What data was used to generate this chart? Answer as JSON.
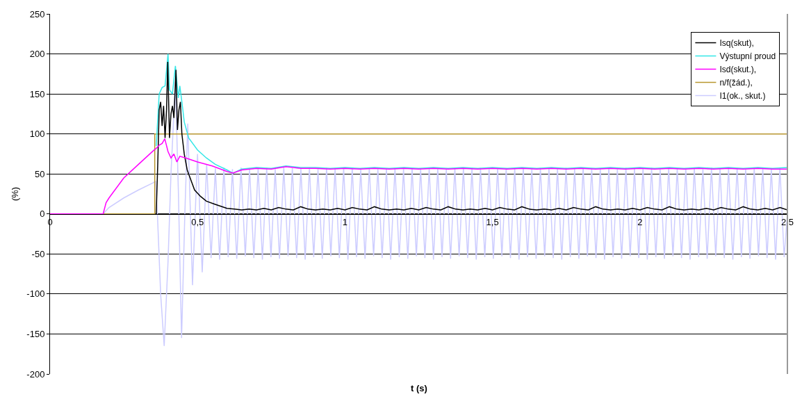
{
  "chart_data": {
    "type": "line",
    "xlabel": "t (s)",
    "ylabel": "(%)",
    "xlim": [
      0,
      2.5
    ],
    "ylim": [
      -200,
      250
    ],
    "xticks": [
      0,
      {
        "value": 0.5,
        "label": "0,5"
      },
      1,
      {
        "value": 1.5,
        "label": "1,5"
      },
      2,
      {
        "value": 2.5,
        "label": "2,5"
      }
    ],
    "yticks": [
      -200,
      -150,
      -100,
      -50,
      0,
      50,
      100,
      150,
      200,
      250
    ],
    "grid": "y",
    "legend": "top right",
    "series": [
      {
        "name": "Isq(skut),",
        "color": "#000000",
        "x": [
          0.36,
          0.365,
          0.37,
          0.375,
          0.38,
          0.385,
          0.39,
          0.395,
          0.399,
          0.405,
          0.41,
          0.415,
          0.42,
          0.427,
          0.432,
          0.437,
          0.442,
          0.447,
          0.455,
          0.465,
          0.475,
          0.49,
          0.51,
          0.53,
          0.56,
          0.6,
          0.625,
          0.65,
          0.675,
          0.7,
          0.725,
          0.75,
          0.775,
          0.8,
          0.825,
          0.85,
          0.875,
          0.9,
          0.925,
          0.95,
          0.975,
          1,
          1.025,
          1.05,
          1.075,
          1.1,
          1.125,
          1.15,
          1.175,
          1.2,
          1.225,
          1.25,
          1.275,
          1.3,
          1.325,
          1.35,
          1.375,
          1.4,
          1.425,
          1.45,
          1.475,
          1.5,
          1.525,
          1.55,
          1.575,
          1.6,
          1.625,
          1.65,
          1.675,
          1.7,
          1.725,
          1.75,
          1.775,
          1.8,
          1.825,
          1.85,
          1.875,
          1.9,
          1.925,
          1.95,
          1.975,
          2,
          2.025,
          2.05,
          2.075,
          2.1,
          2.125,
          2.15,
          2.175,
          2.2,
          2.225,
          2.25,
          2.275,
          2.3,
          2.325,
          2.35,
          2.375,
          2.4,
          2.425,
          2.45,
          2.475,
          2.5
        ],
        "values": [
          0,
          60,
          130,
          140,
          110,
          135,
          95,
          130,
          190,
          95,
          125,
          135,
          120,
          180,
          105,
          130,
          140,
          100,
          75,
          55,
          45,
          30,
          22,
          16,
          12,
          7,
          6,
          5,
          6,
          5,
          7,
          5,
          8,
          6,
          5,
          9,
          6,
          5,
          6,
          5,
          7,
          5,
          8,
          6,
          5,
          9,
          6,
          5,
          6,
          5,
          7,
          5,
          8,
          6,
          5,
          9,
          6,
          5,
          6,
          5,
          7,
          5,
          8,
          6,
          5,
          9,
          6,
          5,
          6,
          5,
          7,
          5,
          8,
          6,
          5,
          9,
          6,
          5,
          6,
          5,
          7,
          5,
          8,
          6,
          5,
          9,
          6,
          5,
          6,
          5,
          7,
          5,
          8,
          6,
          5,
          9,
          6,
          5,
          7,
          5,
          8,
          5
        ]
      },
      {
        "name": "Výstupní proud",
        "color": "#33e6e6",
        "x": [
          0.36,
          0.37,
          0.38,
          0.39,
          0.4,
          0.405,
          0.415,
          0.425,
          0.435,
          0.44,
          0.447,
          0.455,
          0.47,
          0.5,
          0.53,
          0.56,
          0.6,
          0.62,
          0.65,
          0.7,
          0.75,
          0.8,
          0.85,
          0.9,
          0.95,
          1,
          1.05,
          1.1,
          1.15,
          1.2,
          1.25,
          1.3,
          1.35,
          1.4,
          1.45,
          1.5,
          1.55,
          1.6,
          1.65,
          1.7,
          1.75,
          1.8,
          1.85,
          1.9,
          1.95,
          2,
          2.05,
          2.1,
          2.15,
          2.2,
          2.25,
          2.3,
          2.35,
          2.4,
          2.45,
          2.5
        ],
        "values": [
          85,
          150,
          158,
          160,
          200,
          155,
          150,
          185,
          145,
          160,
          140,
          115,
          95,
          80,
          70,
          62,
          55,
          51,
          56,
          58,
          57,
          60,
          58,
          58,
          57,
          58,
          57,
          58,
          57,
          58,
          57,
          58,
          57,
          58,
          57,
          58,
          57,
          58,
          57,
          58,
          57,
          58,
          57,
          58,
          57,
          58,
          57,
          58,
          57,
          58,
          57,
          58,
          57,
          58,
          57,
          58
        ]
      },
      {
        "name": "Isd(skut.),",
        "color": "#ff00ff",
        "x": [
          0,
          0.18,
          0.19,
          0.2,
          0.25,
          0.3,
          0.35,
          0.36,
          0.37,
          0.38,
          0.389,
          0.4,
          0.41,
          0.42,
          0.43,
          0.44,
          0.46,
          0.5,
          0.55,
          0.6,
          0.62,
          0.65,
          0.7,
          0.75,
          0.8,
          0.85,
          0.9,
          0.95,
          1,
          1.05,
          1.1,
          1.15,
          1.2,
          1.25,
          1.3,
          1.35,
          1.4,
          1.45,
          1.5,
          1.55,
          1.6,
          1.65,
          1.7,
          1.75,
          1.8,
          1.85,
          1.9,
          1.95,
          2,
          2.05,
          2.1,
          2.15,
          2.2,
          2.25,
          2.3,
          2.35,
          2.4,
          2.45,
          2.5
        ],
        "values": [
          0,
          0,
          14,
          20,
          45,
          62,
          79,
          82,
          86,
          88,
          94,
          78,
          70,
          75,
          65,
          72,
          70,
          65,
          60,
          53,
          51,
          55,
          57,
          56,
          59,
          57,
          57,
          56,
          57,
          56,
          57,
          56,
          57,
          56,
          57,
          56,
          57,
          56,
          57,
          56,
          57,
          56,
          57,
          56,
          57,
          56,
          57,
          56,
          57,
          56,
          57,
          56,
          57,
          56,
          57,
          56,
          57,
          56,
          56
        ]
      },
      {
        "name": "n/f(žád.),",
        "color": "#b8962e",
        "type": "step",
        "x": [
          0,
          0.355,
          2.5
        ],
        "values": [
          0,
          100,
          100
        ]
      },
      {
        "name": "I1(ok., skut.)",
        "color": "#ccccff",
        "x": [
          0.18,
          0.2,
          0.25,
          0.3,
          0.35,
          0.358,
          0.364,
          0.375,
          0.387,
          0.4,
          0.41,
          0.425,
          0.435,
          0.446,
          0.457,
          0.467,
          0.483,
          0.5,
          0.516,
          0.531,
          0.546,
          0.5605,
          0.575,
          0.5895,
          0.604,
          0.6185,
          0.633,
          0.6475,
          0.662,
          0.6765,
          0.691,
          0.7055,
          0.72,
          0.7345,
          0.749,
          0.7635,
          0.778,
          0.7925,
          0.807,
          0.8215,
          0.836,
          0.8505,
          0.865,
          0.8795,
          0.894,
          0.9085,
          0.923,
          0.9375,
          0.952,
          0.9665,
          0.981,
          0.9955,
          1.01,
          1.0245,
          1.039,
          1.0535,
          1.068,
          1.0825,
          1.097,
          1.1115,
          1.126,
          1.1405,
          1.155,
          1.1695,
          1.184,
          1.1985,
          1.213,
          1.2275,
          1.242,
          1.2565,
          1.271,
          1.2855,
          1.3,
          1.3145,
          1.329,
          1.3435,
          1.358,
          1.3725,
          1.387,
          1.4015,
          1.416,
          1.4305,
          1.445,
          1.4595,
          1.474,
          1.4885,
          1.503,
          1.5175,
          1.532,
          1.5465,
          1.561,
          1.5755,
          1.59,
          1.6045,
          1.619,
          1.6335,
          1.648,
          1.6625,
          1.677,
          1.6915,
          1.706,
          1.7205,
          1.735,
          1.7495,
          1.764,
          1.7785,
          1.793,
          1.8075,
          1.822,
          1.8365,
          1.851,
          1.8655,
          1.88,
          1.8945,
          1.909,
          1.9235,
          1.938,
          1.9525,
          1.967,
          1.9815,
          1.996,
          2.0105,
          2.025,
          2.0395,
          2.054,
          2.0685,
          2.083,
          2.0975,
          2.112,
          2.1265,
          2.141,
          2.1555,
          2.17,
          2.1845,
          2.199,
          2.2135,
          2.228,
          2.2425,
          2.257,
          2.2715,
          2.286,
          2.3005,
          2.315,
          2.3295,
          2.344,
          2.3585,
          2.373,
          2.3875,
          2.402,
          2.4165,
          2.431,
          2.4455,
          2.46,
          2.4745,
          2.489,
          2.5
        ],
        "values": [
          0,
          8,
          20,
          30,
          39,
          41,
          0,
          -100,
          -165,
          -60,
          50,
          165,
          30,
          -155,
          0,
          113,
          -89,
          75,
          -73,
          62,
          -55,
          57,
          -57,
          58,
          -54,
          56,
          -56,
          58,
          -53,
          57,
          -55,
          57,
          -57,
          58,
          -54,
          56,
          -56,
          58,
          -53,
          57,
          -55,
          57,
          -57,
          58,
          -54,
          56,
          -56,
          58,
          -53,
          57,
          -55,
          57,
          -57,
          58,
          -54,
          56,
          -56,
          58,
          -53,
          57,
          -55,
          57,
          -57,
          58,
          -54,
          56,
          -56,
          58,
          -53,
          57,
          -55,
          57,
          -57,
          58,
          -54,
          56,
          -56,
          58,
          -53,
          57,
          -55,
          57,
          -57,
          58,
          -54,
          56,
          -56,
          58,
          -53,
          57,
          -55,
          57,
          -57,
          58,
          -54,
          56,
          -56,
          58,
          -53,
          57,
          -55,
          57,
          -57,
          58,
          -54,
          56,
          -56,
          58,
          -53,
          57,
          -55,
          57,
          -57,
          58,
          -54,
          56,
          -56,
          58,
          -53,
          57,
          -55,
          57,
          -57,
          58,
          -54,
          56,
          -56,
          58,
          -53,
          57,
          -55,
          57,
          -57,
          58,
          -54,
          56,
          -56,
          58,
          -53,
          57,
          -55,
          57,
          -57,
          58,
          -54,
          56,
          -56,
          58,
          -53,
          57,
          -55,
          57,
          -57,
          58,
          -54,
          0
        ]
      }
    ]
  }
}
